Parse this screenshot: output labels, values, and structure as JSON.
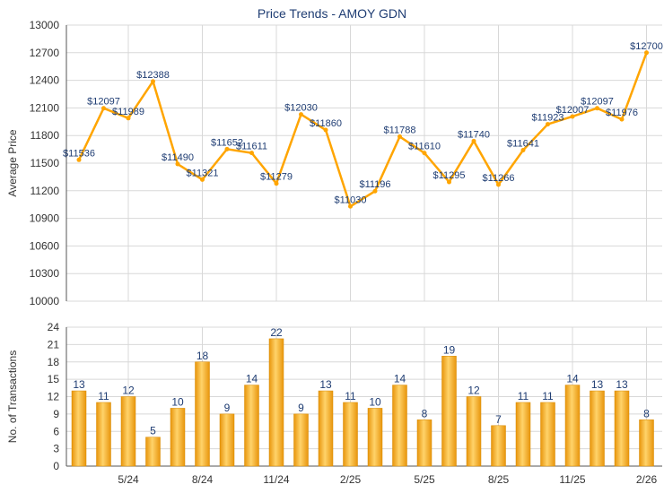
{
  "chart_data": [
    {
      "type": "line",
      "title": "Price Trends - AMOY GDN",
      "xlabel": "",
      "ylabel": "Average Price",
      "ylim": [
        10000,
        13000
      ],
      "yticks": [
        "10000",
        "10300",
        "10600",
        "10900",
        "11200",
        "11500",
        "11800",
        "12100",
        "12400",
        "12700",
        "13000"
      ],
      "values": [
        11536,
        12097,
        11989,
        12388,
        11490,
        11321,
        11652,
        11611,
        11279,
        12030,
        11860,
        11030,
        11196,
        11788,
        11610,
        11295,
        11740,
        11266,
        11641,
        11923,
        12007,
        12097,
        11976,
        12700
      ],
      "labels": [
        "$11536",
        "$12097",
        "$11989",
        "$12388",
        "$11490",
        "$11321",
        "$11652",
        "$11611",
        "$11279",
        "$12030",
        "$11860",
        "$11030",
        "$11196",
        "$11788",
        "$11610",
        "$11295",
        "$11740",
        "$11266",
        "$11641",
        "$11923",
        "$12007",
        "$12097",
        "$11976",
        "$12700"
      ],
      "grid": true,
      "color": "#ffa500"
    },
    {
      "type": "bar",
      "xlabel": "",
      "ylabel": "No. of Transactions",
      "ylim": [
        0,
        24
      ],
      "yticks": [
        "0",
        "3",
        "6",
        "9",
        "12",
        "15",
        "18",
        "21",
        "24"
      ],
      "values": [
        13,
        11,
        12,
        5,
        10,
        18,
        9,
        14,
        22,
        9,
        13,
        11,
        10,
        14,
        8,
        19,
        12,
        7,
        11,
        11,
        14,
        13,
        13,
        8
      ],
      "xticks": [
        {
          "index": 2,
          "label": "5/24"
        },
        {
          "index": 5,
          "label": "8/24"
        },
        {
          "index": 8,
          "label": "11/24"
        },
        {
          "index": 11,
          "label": "2/25"
        },
        {
          "index": 14,
          "label": "5/25"
        },
        {
          "index": 17,
          "label": "8/25"
        },
        {
          "index": 20,
          "label": "11/25"
        },
        {
          "index": 23,
          "label": "2/26"
        }
      ],
      "grid": true,
      "color": "#f5a623"
    }
  ]
}
